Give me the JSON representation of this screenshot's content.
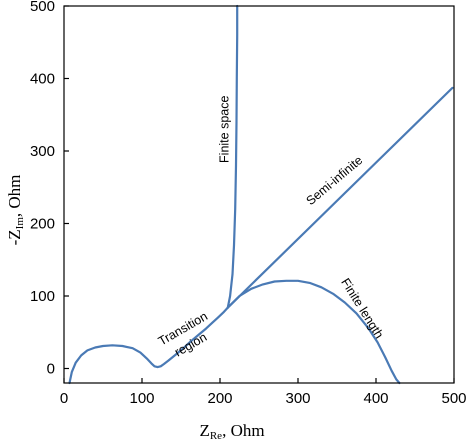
{
  "chart_data": {
    "type": "line",
    "title": "",
    "xlabel": {
      "main": "Z",
      "sub": "Re",
      "unit": ", Ohm"
    },
    "ylabel": {
      "prefix": "-Z",
      "sub": "Im",
      "unit": ", Ohm"
    },
    "xlim": [
      0,
      500
    ],
    "ylim": [
      -20,
      500
    ],
    "xticks": [
      {
        "value": 0,
        "label": "0"
      },
      {
        "value": 100,
        "label": "100"
      },
      {
        "value": 200,
        "label": "200"
      },
      {
        "value": 300,
        "label": "300"
      },
      {
        "value": 400,
        "label": "400"
      },
      {
        "value": 500,
        "label": "500"
      }
    ],
    "yticks": [
      {
        "value": 0,
        "label": "0"
      },
      {
        "value": 100,
        "label": "100"
      },
      {
        "value": 200,
        "label": "200"
      },
      {
        "value": 300,
        "label": "300"
      },
      {
        "value": 400,
        "label": "400"
      },
      {
        "value": 500,
        "label": "500"
      }
    ],
    "grid": false,
    "line_color": "#4a7ab5",
    "series": [
      {
        "key": "common",
        "x": [
          7,
          10,
          15,
          22,
          30,
          40,
          50,
          62,
          75,
          88,
          98,
          106,
          112,
          116,
          120,
          124,
          128,
          134,
          142,
          152,
          162,
          172,
          182,
          190,
          197,
          204,
          210
        ],
        "y": [
          -20,
          -5,
          8,
          18,
          25,
          29,
          31,
          32,
          31,
          28,
          22,
          14,
          7,
          3,
          2,
          3,
          6,
          11,
          18,
          27,
          37,
          46,
          55,
          63,
          70,
          77,
          84
        ]
      },
      {
        "key": "finite-space",
        "x": [
          210,
          213,
          216,
          218,
          219.5,
          220.5,
          221.2,
          221.6,
          222,
          222
        ],
        "y": [
          84,
          100,
          130,
          170,
          220,
          280,
          340,
          400,
          460,
          500
        ]
      },
      {
        "key": "semi-infinite",
        "x": [
          210,
          498
        ],
        "y": [
          84,
          387
        ]
      },
      {
        "key": "finite-length",
        "x": [
          210,
          225,
          240,
          255,
          270,
          285,
          300,
          315,
          330,
          345,
          360,
          375,
          390,
          402,
          412,
          420,
          426,
          430
        ],
        "y": [
          84,
          100,
          110,
          116,
          120,
          121,
          121,
          118,
          112,
          103,
          91,
          76,
          56,
          36,
          15,
          -3,
          -15,
          -20
        ]
      }
    ],
    "annotations": [
      {
        "text": "Finite space",
        "x": 211,
        "y": 330,
        "rotate": -90
      },
      {
        "text": "Semi-infinite",
        "x": 350,
        "y": 255,
        "rotate": -40
      },
      {
        "text": "Transition",
        "x": 155,
        "y": 50,
        "rotate": -30
      },
      {
        "text": "region",
        "x": 165,
        "y": 28,
        "rotate": -30
      },
      {
        "text": "Finite length",
        "x": 378,
        "y": 80,
        "rotate": 58
      }
    ]
  }
}
